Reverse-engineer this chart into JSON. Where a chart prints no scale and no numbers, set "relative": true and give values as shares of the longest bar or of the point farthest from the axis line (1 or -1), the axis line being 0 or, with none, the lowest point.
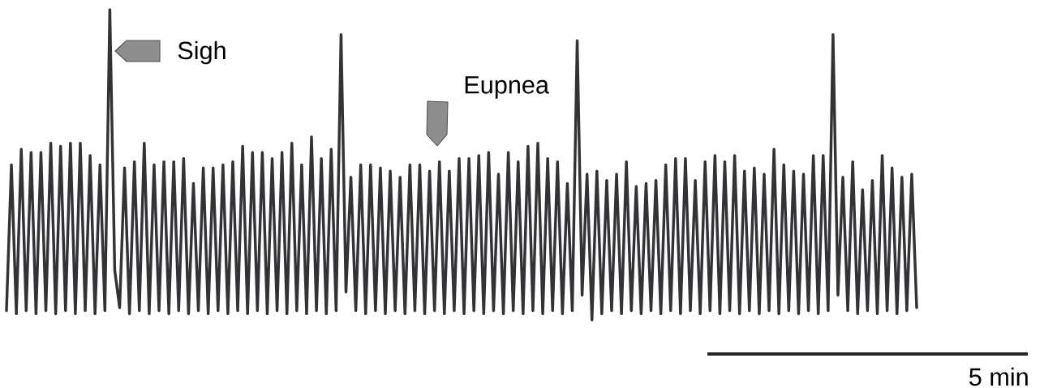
{
  "chart_data": {
    "type": "line",
    "relative": true,
    "color": "#343236",
    "line_style": "solid",
    "marker": "none",
    "annotations": [
      "Sigh",
      "Eupnea",
      "5 min"
    ],
    "categories": [
      null,
      null,
      null,
      null,
      null,
      null,
      null,
      null,
      null,
      null,
      null,
      null,
      null,
      null,
      null,
      null,
      null,
      null,
      null,
      null,
      null,
      null,
      null,
      null,
      null,
      null,
      null,
      null,
      null,
      null,
      null,
      null,
      null,
      null,
      null,
      null,
      null,
      null,
      null,
      null,
      null,
      null,
      null,
      null,
      null,
      null,
      null,
      null,
      null,
      null,
      null,
      null,
      null,
      null,
      null,
      null,
      null,
      null,
      null,
      null,
      null,
      null,
      null,
      null,
      null,
      null,
      null,
      null,
      null,
      null,
      null,
      null,
      null,
      null,
      null,
      null,
      null,
      null,
      null,
      null,
      null,
      null,
      null,
      null,
      null,
      null,
      null,
      null,
      null,
      null,
      null,
      null,
      null,
      null,
      null,
      null,
      null,
      null,
      null,
      null,
      null,
      null,
      null,
      null,
      null,
      null,
      null,
      null,
      null,
      null,
      null,
      null,
      null,
      null,
      null,
      null,
      null,
      null,
      null,
      null,
      null,
      null,
      null,
      null,
      null,
      null,
      null,
      null,
      null,
      null,
      null,
      null,
      null,
      null,
      null,
      null,
      null,
      null,
      null,
      null,
      null,
      null,
      null,
      null,
      null,
      null,
      null,
      null,
      null,
      null,
      null,
      null,
      null,
      null,
      null,
      null,
      null,
      null,
      null,
      null,
      null,
      null,
      null,
      null,
      null,
      null,
      null,
      null,
      null,
      null,
      null,
      null,
      null,
      null,
      null,
      null,
      null,
      null,
      null,
      null,
      null,
      null,
      null,
      null,
      null,
      null
    ],
    "values": [
      0.03,
      0.5,
      0.02,
      0.55,
      0.03,
      0.54,
      0.02,
      0.54,
      0.03,
      0.57,
      0.02,
      0.56,
      0.03,
      0.57,
      0.02,
      0.57,
      0.03,
      0.53,
      0.02,
      0.5,
      0.03,
      1.0,
      0.16,
      0.04,
      0.49,
      0.02,
      0.51,
      0.03,
      0.57,
      0.02,
      0.5,
      0.03,
      0.51,
      0.02,
      0.51,
      0.03,
      0.52,
      0.02,
      0.44,
      0.03,
      0.49,
      0.02,
      0.49,
      0.03,
      0.5,
      0.02,
      0.51,
      0.03,
      0.56,
      0.02,
      0.54,
      0.03,
      0.54,
      0.02,
      0.52,
      0.03,
      0.54,
      0.02,
      0.57,
      0.03,
      0.5,
      0.02,
      0.59,
      0.03,
      0.52,
      0.02,
      0.55,
      0.03,
      0.92,
      0.09,
      0.46,
      0.03,
      0.5,
      0.02,
      0.5,
      0.03,
      0.49,
      0.02,
      0.48,
      0.03,
      0.46,
      0.02,
      0.5,
      0.03,
      0.5,
      0.02,
      0.48,
      0.03,
      0.51,
      0.02,
      0.48,
      0.03,
      0.52,
      0.02,
      0.52,
      0.03,
      0.53,
      0.02,
      0.54,
      0.03,
      0.47,
      0.02,
      0.54,
      0.03,
      0.51,
      0.02,
      0.56,
      0.03,
      0.57,
      0.02,
      0.52,
      0.03,
      0.51,
      0.02,
      0.44,
      0.03,
      0.9,
      0.08,
      0.47,
      0.0,
      0.48,
      0.02,
      0.45,
      0.03,
      0.47,
      0.02,
      0.51,
      0.03,
      0.43,
      0.02,
      0.44,
      0.03,
      0.45,
      0.02,
      0.5,
      0.03,
      0.52,
      0.02,
      0.52,
      0.03,
      0.45,
      0.02,
      0.51,
      0.03,
      0.53,
      0.02,
      0.51,
      0.03,
      0.53,
      0.02,
      0.48,
      0.03,
      0.49,
      0.02,
      0.47,
      0.03,
      0.55,
      0.02,
      0.5,
      0.03,
      0.48,
      0.02,
      0.47,
      0.03,
      0.53,
      0.02,
      0.53,
      0.03,
      0.92,
      0.08,
      0.46,
      0.03,
      0.51,
      0.02,
      0.42,
      0.03,
      0.45,
      0.02,
      0.53,
      0.03,
      0.49,
      0.02,
      0.46,
      0.03,
      0.47,
      0.04
    ]
  }
}
